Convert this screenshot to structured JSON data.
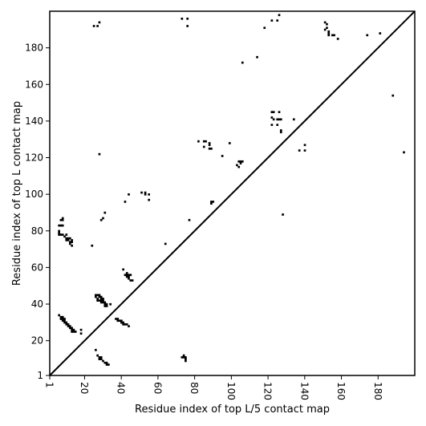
{
  "chart_data": {
    "type": "heatmap",
    "xlabel": "Residue index of top L/5 contact map",
    "ylabel": "Residue index of top L contact map",
    "xlim": [
      1,
      200
    ],
    "ylim": [
      1,
      200
    ],
    "xticks": [
      1,
      20,
      40,
      60,
      80,
      100,
      120,
      140,
      160,
      180
    ],
    "yticks": [
      1,
      20,
      40,
      60,
      80,
      100,
      120,
      140,
      160,
      180
    ],
    "diagonal": true,
    "colors": {
      "contact": "#000000",
      "background": "#ffffff",
      "frame": "#000000"
    },
    "cells": [
      [
        25,
        192
      ],
      [
        27,
        192
      ],
      [
        28,
        194
      ],
      [
        28,
        122
      ],
      [
        73,
        196
      ],
      [
        76,
        196
      ],
      [
        76,
        192
      ],
      [
        118,
        191
      ],
      [
        122,
        195
      ],
      [
        125,
        195
      ],
      [
        126,
        198
      ],
      [
        106,
        172
      ],
      [
        114,
        175
      ],
      [
        151,
        194
      ],
      [
        152,
        193
      ],
      [
        151,
        190
      ],
      [
        152,
        191
      ],
      [
        153,
        189
      ],
      [
        153,
        188
      ],
      [
        155,
        187
      ],
      [
        156,
        187
      ],
      [
        153,
        187
      ],
      [
        158,
        185
      ],
      [
        174,
        187
      ],
      [
        181,
        188
      ],
      [
        188,
        154
      ],
      [
        194,
        123
      ],
      [
        122,
        145
      ],
      [
        123,
        145
      ],
      [
        126,
        145
      ],
      [
        122,
        142
      ],
      [
        123,
        141
      ],
      [
        125,
        141
      ],
      [
        126,
        141
      ],
      [
        127,
        141
      ],
      [
        122,
        138
      ],
      [
        125,
        138
      ],
      [
        127,
        135
      ],
      [
        127,
        134
      ],
      [
        134,
        141
      ],
      [
        137,
        124
      ],
      [
        140,
        124
      ],
      [
        140,
        127
      ],
      [
        82,
        129
      ],
      [
        85,
        129
      ],
      [
        86,
        129
      ],
      [
        88,
        128
      ],
      [
        88,
        127
      ],
      [
        85,
        126
      ],
      [
        88,
        125
      ],
      [
        89,
        125
      ],
      [
        95,
        121
      ],
      [
        99,
        128
      ],
      [
        103,
        116
      ],
      [
        104,
        115
      ],
      [
        104,
        118
      ],
      [
        105,
        117
      ],
      [
        105,
        118
      ],
      [
        106,
        118
      ],
      [
        89,
        96
      ],
      [
        90,
        96
      ],
      [
        89,
        95
      ],
      [
        77,
        86
      ],
      [
        51,
        101
      ],
      [
        53,
        101
      ],
      [
        53,
        100
      ],
      [
        55,
        100
      ],
      [
        55,
        97
      ],
      [
        44,
        100
      ],
      [
        42,
        96
      ],
      [
        29,
        86
      ],
      [
        30,
        87
      ],
      [
        31,
        90
      ],
      [
        64,
        73
      ],
      [
        24,
        72
      ],
      [
        8,
        87
      ],
      [
        7,
        86
      ],
      [
        8,
        86
      ],
      [
        6,
        83
      ],
      [
        7,
        83
      ],
      [
        8,
        83
      ],
      [
        6,
        80
      ],
      [
        6,
        79
      ],
      [
        6,
        78
      ],
      [
        7,
        78
      ],
      [
        8,
        78
      ],
      [
        9,
        77
      ],
      [
        10,
        78
      ],
      [
        10,
        76
      ],
      [
        11,
        76
      ],
      [
        12,
        76
      ],
      [
        10,
        75
      ],
      [
        11,
        75
      ],
      [
        13,
        75
      ],
      [
        12,
        74
      ],
      [
        13,
        74
      ],
      [
        12,
        73
      ],
      [
        13,
        72
      ],
      [
        41,
        59
      ],
      [
        43,
        57
      ],
      [
        42,
        56
      ],
      [
        43,
        56
      ],
      [
        44,
        56
      ],
      [
        45,
        56
      ],
      [
        43,
        55
      ],
      [
        44,
        55
      ],
      [
        44,
        54
      ],
      [
        45,
        53
      ],
      [
        46,
        53
      ],
      [
        128,
        89
      ],
      [
        26,
        45
      ],
      [
        27,
        45
      ],
      [
        28,
        45
      ],
      [
        26,
        44
      ],
      [
        28,
        44
      ],
      [
        29,
        44
      ],
      [
        27,
        43
      ],
      [
        29,
        43
      ],
      [
        30,
        43
      ],
      [
        27,
        42
      ],
      [
        28,
        42
      ],
      [
        29,
        42
      ],
      [
        30,
        42
      ],
      [
        31,
        41
      ],
      [
        29,
        41
      ],
      [
        30,
        41
      ],
      [
        31,
        40
      ],
      [
        32,
        40
      ],
      [
        31,
        39
      ],
      [
        32,
        39
      ],
      [
        34,
        40
      ],
      [
        37,
        32
      ],
      [
        38,
        32
      ],
      [
        38,
        31
      ],
      [
        39,
        31
      ],
      [
        40,
        31
      ],
      [
        40,
        30
      ],
      [
        41,
        30
      ],
      [
        41,
        29
      ],
      [
        42,
        29
      ],
      [
        43,
        29
      ],
      [
        44,
        28
      ],
      [
        6,
        34
      ],
      [
        7,
        33
      ],
      [
        8,
        33
      ],
      [
        7,
        32
      ],
      [
        8,
        32
      ],
      [
        9,
        32
      ],
      [
        8,
        31
      ],
      [
        9,
        31
      ],
      [
        9,
        30
      ],
      [
        10,
        30
      ],
      [
        10,
        29
      ],
      [
        11,
        29
      ],
      [
        11,
        28
      ],
      [
        12,
        28
      ],
      [
        12,
        27
      ],
      [
        13,
        27
      ],
      [
        13,
        26
      ],
      [
        14,
        26
      ],
      [
        13,
        25
      ],
      [
        14,
        25
      ],
      [
        15,
        25
      ],
      [
        18,
        26
      ],
      [
        18,
        24
      ],
      [
        26,
        15
      ],
      [
        27,
        12
      ],
      [
        28,
        11
      ],
      [
        29,
        11
      ],
      [
        28,
        10
      ],
      [
        29,
        10
      ],
      [
        30,
        9
      ],
      [
        31,
        8
      ],
      [
        32,
        8
      ],
      [
        32,
        7
      ],
      [
        33,
        7
      ],
      [
        74,
        12
      ],
      [
        73,
        11
      ],
      [
        74,
        11
      ],
      [
        75,
        11
      ],
      [
        75,
        10
      ],
      [
        75,
        9
      ]
    ]
  }
}
